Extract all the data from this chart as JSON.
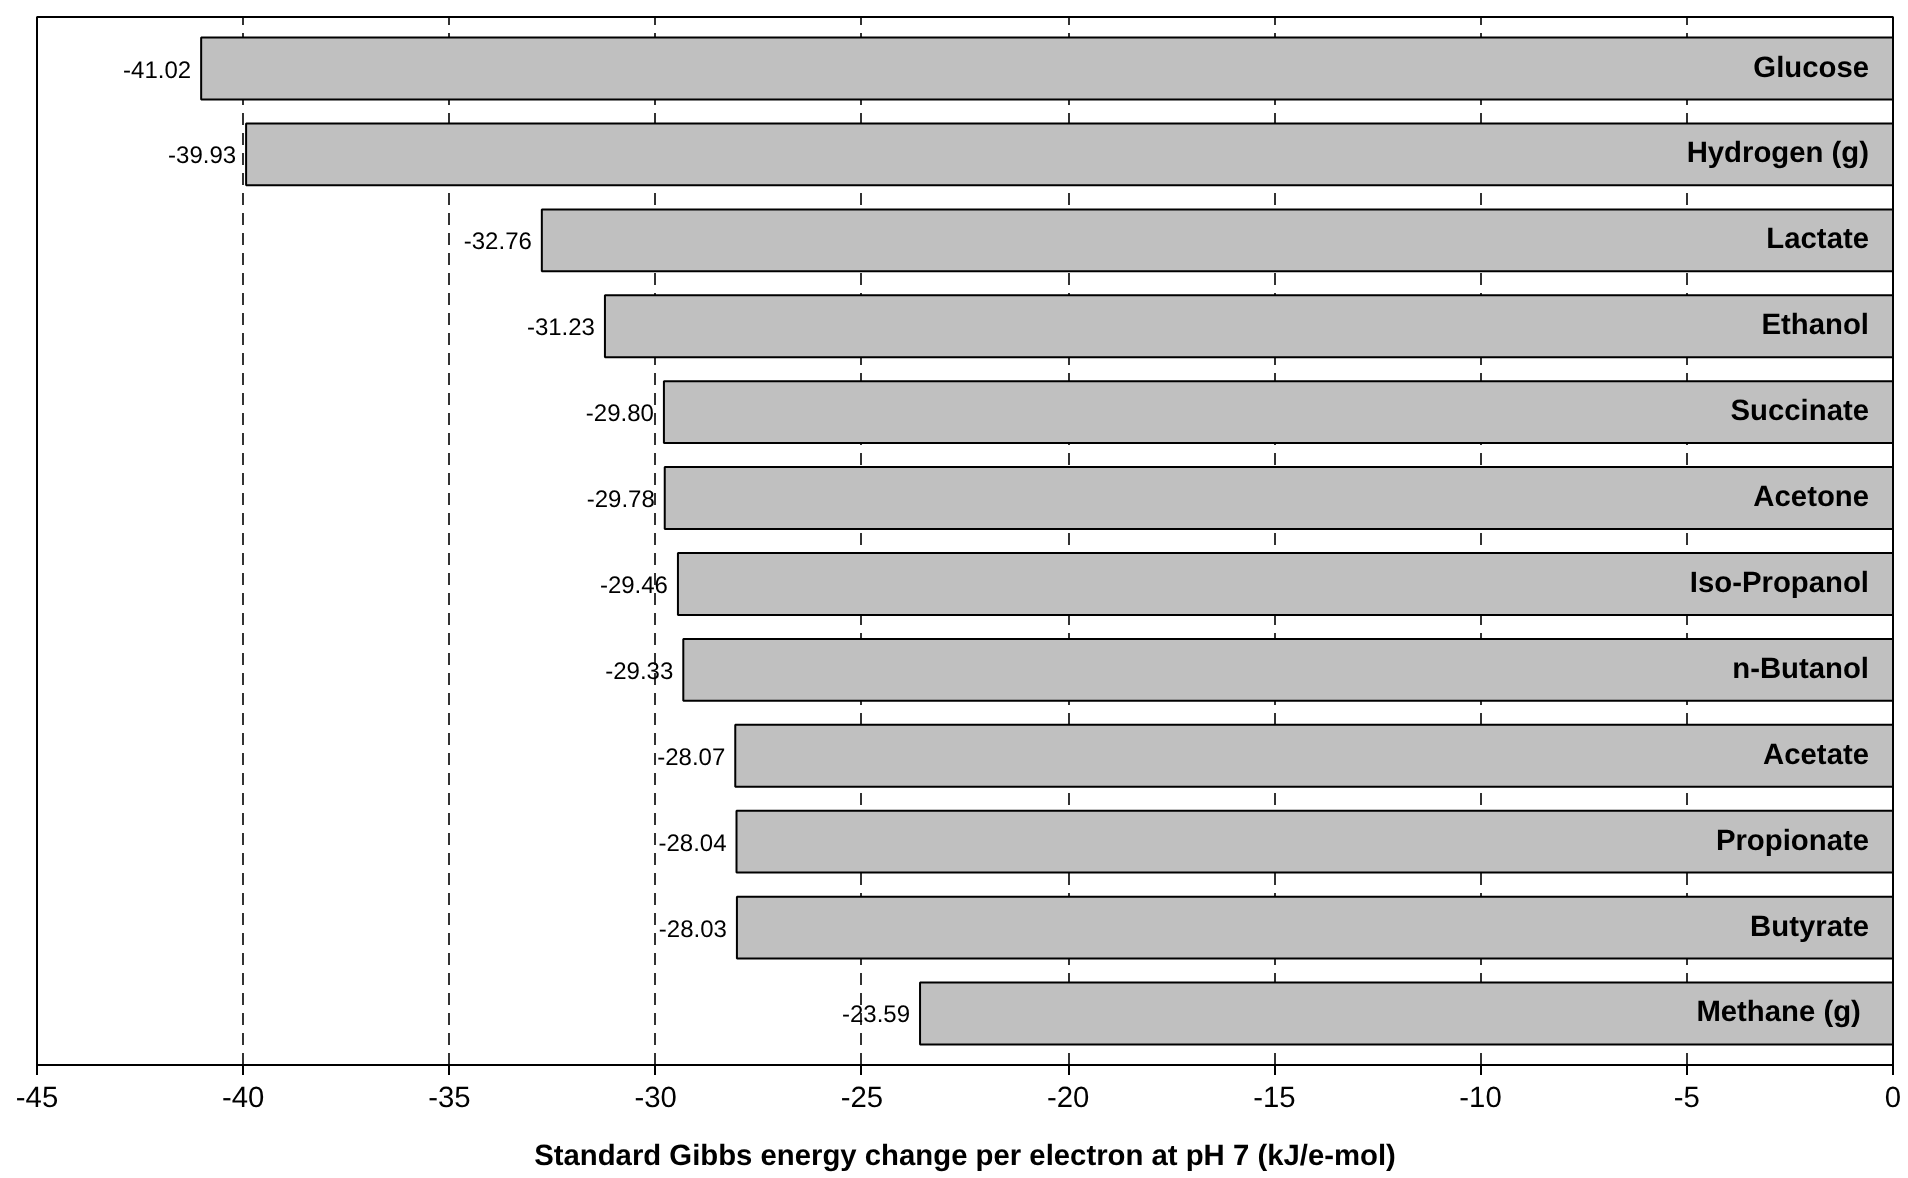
{
  "chart_data": {
    "type": "bar",
    "orientation": "horizontal",
    "xlabel": "Standard Gibbs energy change per electron at pH 7 (kJ/e-mol)",
    "categories": [
      "Glucose",
      "Hydrogen (g)",
      "Lactate",
      "Ethanol",
      "Succinate",
      "Acetone",
      "Iso-Propanol",
      "n-Butanol",
      "Acetate",
      "Propionate",
      "Butyrate",
      "Methane  (g)"
    ],
    "values": [
      -41.02,
      -39.93,
      -32.76,
      -31.23,
      -29.8,
      -29.78,
      -29.46,
      -29.33,
      -28.07,
      -28.04,
      -28.03,
      -23.59
    ],
    "value_labels": [
      "-41.02",
      "-39.93",
      "-32.76",
      "-31.23",
      "-29.80",
      "-29.78",
      "-29.46",
      "-29.33",
      "-28.07",
      "-28.04",
      "-28.03",
      "-23.59"
    ],
    "color": "#c0c0c0",
    "xlim": [
      -45,
      0
    ],
    "xticks": [
      -45,
      -40,
      -35,
      -30,
      -25,
      -20,
      -15,
      -10,
      -5,
      0
    ],
    "grid": "x"
  }
}
